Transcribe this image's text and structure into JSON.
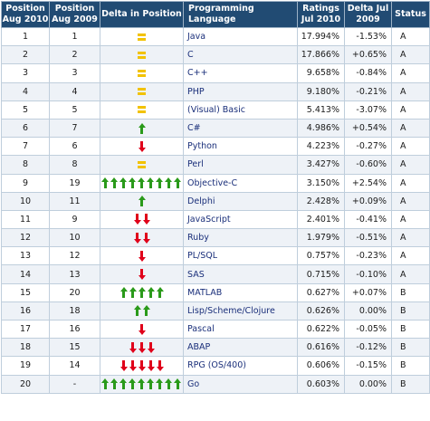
{
  "headers": {
    "pos2010": "Position Aug 2010",
    "pos2009": "Position Aug 2009",
    "delta_position": "Delta in Position",
    "language": "Programming Language",
    "ratings": "Ratings Jul 2010",
    "delta": "Delta Jul 2009",
    "status": "Status"
  },
  "colors": {
    "header_bg": "#214b73",
    "up_arrow": "#2a9a1a",
    "down_arrow": "#e0001a",
    "equal_sign": "#f2c200"
  },
  "rows": [
    {
      "pos2010": "1",
      "pos2009": "1",
      "trend": "equal",
      "arrows": 1,
      "language": "Java",
      "rating": "17.994%",
      "delta": "-1.53%",
      "status": "A"
    },
    {
      "pos2010": "2",
      "pos2009": "2",
      "trend": "equal",
      "arrows": 1,
      "language": "C",
      "rating": "17.866%",
      "delta": "+0.65%",
      "status": "A"
    },
    {
      "pos2010": "3",
      "pos2009": "3",
      "trend": "equal",
      "arrows": 1,
      "language": "C++",
      "rating": "9.658%",
      "delta": "-0.84%",
      "status": "A"
    },
    {
      "pos2010": "4",
      "pos2009": "4",
      "trend": "equal",
      "arrows": 1,
      "language": "PHP",
      "rating": "9.180%",
      "delta": "-0.21%",
      "status": "A"
    },
    {
      "pos2010": "5",
      "pos2009": "5",
      "trend": "equal",
      "arrows": 1,
      "language": "(Visual) Basic",
      "rating": "5.413%",
      "delta": "-3.07%",
      "status": "A"
    },
    {
      "pos2010": "6",
      "pos2009": "7",
      "trend": "up",
      "arrows": 1,
      "language": "C#",
      "rating": "4.986%",
      "delta": "+0.54%",
      "status": "A"
    },
    {
      "pos2010": "7",
      "pos2009": "6",
      "trend": "down",
      "arrows": 1,
      "language": "Python",
      "rating": "4.223%",
      "delta": "-0.27%",
      "status": "A"
    },
    {
      "pos2010": "8",
      "pos2009": "8",
      "trend": "equal",
      "arrows": 1,
      "language": "Perl",
      "rating": "3.427%",
      "delta": "-0.60%",
      "status": "A"
    },
    {
      "pos2010": "9",
      "pos2009": "19",
      "trend": "up",
      "arrows": 10,
      "language": "Objective-C",
      "rating": "3.150%",
      "delta": "+2.54%",
      "status": "A"
    },
    {
      "pos2010": "10",
      "pos2009": "11",
      "trend": "up",
      "arrows": 1,
      "language": "Delphi",
      "rating": "2.428%",
      "delta": "+0.09%",
      "status": "A"
    },
    {
      "pos2010": "11",
      "pos2009": "9",
      "trend": "down",
      "arrows": 2,
      "language": "JavaScript",
      "rating": "2.401%",
      "delta": "-0.41%",
      "status": "A"
    },
    {
      "pos2010": "12",
      "pos2009": "10",
      "trend": "down",
      "arrows": 2,
      "language": "Ruby",
      "rating": "1.979%",
      "delta": "-0.51%",
      "status": "A"
    },
    {
      "pos2010": "13",
      "pos2009": "12",
      "trend": "down",
      "arrows": 1,
      "language": "PL/SQL",
      "rating": "0.757%",
      "delta": "-0.23%",
      "status": "A"
    },
    {
      "pos2010": "14",
      "pos2009": "13",
      "trend": "down",
      "arrows": 1,
      "language": "SAS",
      "rating": "0.715%",
      "delta": "-0.10%",
      "status": "A"
    },
    {
      "pos2010": "15",
      "pos2009": "20",
      "trend": "up",
      "arrows": 5,
      "language": "MATLAB",
      "rating": "0.627%",
      "delta": "+0.07%",
      "status": "B"
    },
    {
      "pos2010": "16",
      "pos2009": "18",
      "trend": "up",
      "arrows": 2,
      "language": "Lisp/Scheme/Clojure",
      "rating": "0.626%",
      "delta": "0.00%",
      "status": "B"
    },
    {
      "pos2010": "17",
      "pos2009": "16",
      "trend": "down",
      "arrows": 1,
      "language": "Pascal",
      "rating": "0.622%",
      "delta": "-0.05%",
      "status": "B"
    },
    {
      "pos2010": "18",
      "pos2009": "15",
      "trend": "down",
      "arrows": 3,
      "language": "ABAP",
      "rating": "0.616%",
      "delta": "-0.12%",
      "status": "B"
    },
    {
      "pos2010": "19",
      "pos2009": "14",
      "trend": "down",
      "arrows": 5,
      "language": "RPG (OS/400)",
      "rating": "0.606%",
      "delta": "-0.15%",
      "status": "B"
    },
    {
      "pos2010": "20",
      "pos2009": "-",
      "trend": "up",
      "arrows": 10,
      "language": "Go",
      "rating": "0.603%",
      "delta": "0.00%",
      "status": "B"
    }
  ]
}
